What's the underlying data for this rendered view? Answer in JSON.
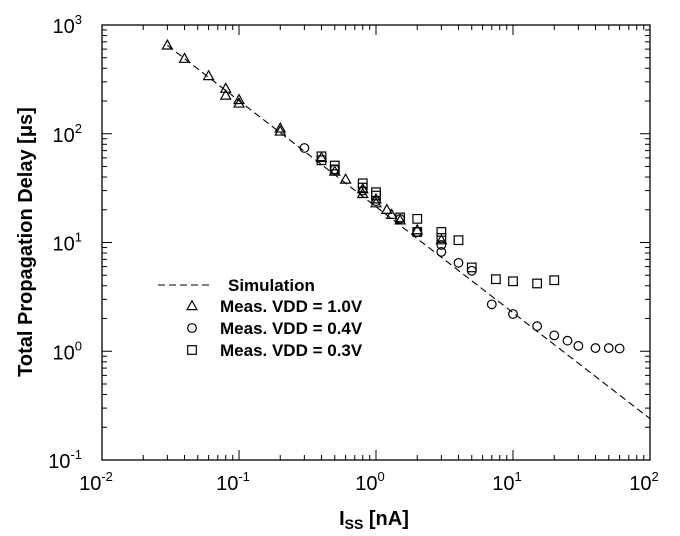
{
  "chart_data": {
    "type": "scatter",
    "xscale": "log",
    "yscale": "log",
    "xlim": [
      0.01,
      100
    ],
    "ylim": [
      0.1,
      1000
    ],
    "grid": false,
    "legend_position": "lower-left",
    "xlabel": "I",
    "xlabel_sub": "SS",
    "xlabel_unit": " [nA]",
    "ylabel": "Total Propagation Delay [μs]",
    "x_ticks": [
      {
        "value": 0.01,
        "base": "10",
        "exp": "-2"
      },
      {
        "value": 0.1,
        "base": "10",
        "exp": "-1"
      },
      {
        "value": 1,
        "base": "10",
        "exp": "0"
      },
      {
        "value": 10,
        "base": "10",
        "exp": "1"
      },
      {
        "value": 100,
        "base": "10",
        "exp": "2"
      }
    ],
    "y_ticks": [
      {
        "value": 0.1,
        "base": "10",
        "exp": "-1"
      },
      {
        "value": 1,
        "base": "10",
        "exp": "0"
      },
      {
        "value": 10,
        "base": "10",
        "exp": "1"
      },
      {
        "value": 100,
        "base": "10",
        "exp": "2"
      },
      {
        "value": 1000,
        "base": "10",
        "exp": "3"
      }
    ],
    "series": [
      {
        "name": "Simulation",
        "style": "dashed-line",
        "x": [
          0.03,
          100
        ],
        "y": [
          650,
          0.24
        ]
      },
      {
        "name": "Meas. VDD = 1.0V",
        "marker": "triangle",
        "x": [
          0.03,
          0.04,
          0.06,
          0.08,
          0.08,
          0.1,
          0.1,
          0.2,
          0.2,
          0.4,
          0.5,
          0.6,
          0.8,
          0.8,
          1.0,
          1.0,
          1.2,
          1.3,
          1.5,
          2.0,
          3.0
        ],
        "y": [
          650,
          490,
          340,
          260,
          225,
          205,
          190,
          112,
          105,
          60,
          45,
          38,
          31,
          28,
          25,
          23,
          20,
          18,
          16,
          13,
          10.5
        ]
      },
      {
        "name": "Meas. VDD = 0.4V",
        "marker": "circle",
        "x": [
          0.3,
          0.5,
          0.8,
          1.0,
          1.5,
          2.0,
          3.0,
          3.0,
          4.0,
          5.0,
          7.0,
          10.0,
          15.0,
          20.0,
          25.0,
          30.0,
          40.0,
          50.0,
          60.0
        ],
        "y": [
          74,
          47,
          30,
          24,
          16.5,
          12.5,
          9.5,
          8.2,
          6.5,
          5.5,
          2.7,
          2.2,
          1.7,
          1.4,
          1.25,
          1.12,
          1.07,
          1.07,
          1.06
        ]
      },
      {
        "name": "Meas. VDD = 0.3V",
        "marker": "square",
        "x": [
          0.4,
          0.4,
          0.5,
          0.5,
          0.8,
          0.8,
          1.0,
          1.0,
          1.5,
          2.0,
          2.0,
          3.0,
          3.0,
          4.0,
          5.0,
          7.5,
          10.0,
          15.0,
          20.0
        ],
        "y": [
          62,
          57,
          51,
          47,
          35,
          32,
          29,
          27,
          17,
          16.5,
          12.5,
          12.5,
          11,
          10.5,
          5.9,
          4.6,
          4.4,
          4.2,
          4.5
        ]
      }
    ]
  }
}
